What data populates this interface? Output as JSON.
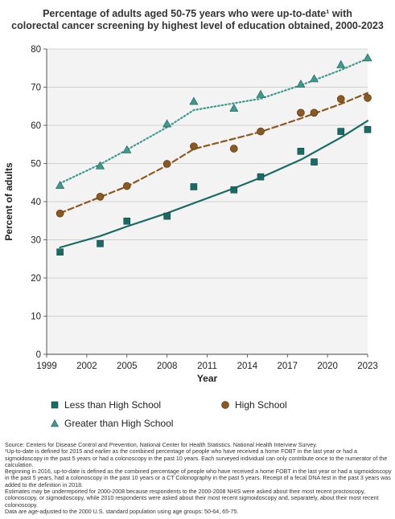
{
  "chart_data": {
    "type": "scatter",
    "title_lines": [
      "Percentage of adults aged 50-75 years who were up-to-date¹ with",
      "colorectal cancer screening by highest level of education obtained, 2000-2023"
    ],
    "xlabel": "Year",
    "ylabel": "Percent of adults",
    "xlim": [
      1999,
      2023
    ],
    "ylim": [
      0,
      80
    ],
    "x_ticks": [
      1999,
      2002,
      2005,
      2008,
      2011,
      2014,
      2017,
      2020,
      2023
    ],
    "y_ticks": [
      0,
      10,
      20,
      30,
      40,
      50,
      60,
      70,
      80
    ],
    "grid": "horizontal",
    "legend_position": "bottom",
    "series": [
      {
        "name": "Less than High School",
        "marker": "square",
        "color": "#1a6b63",
        "line_style": "solid",
        "x": [
          2000,
          2003,
          2005,
          2008,
          2010,
          2013,
          2015,
          2018,
          2019,
          2021,
          2023
        ],
        "y": [
          26.8,
          29.0,
          34.9,
          36.2,
          43.9,
          43.1,
          46.5,
          53.2,
          50.4,
          58.4,
          58.9
        ],
        "trend_x": [
          2000,
          2003,
          2005,
          2008,
          2010,
          2013,
          2015,
          2018,
          2021,
          2023
        ],
        "trend_y": [
          28.0,
          31.0,
          33.5,
          37.0,
          39.6,
          43.5,
          46.3,
          51.0,
          56.8,
          61.2
        ]
      },
      {
        "name": "High School",
        "marker": "circle",
        "color": "#8b5a20",
        "line_style": "dashed",
        "x": [
          2000,
          2003,
          2005,
          2008,
          2010,
          2013,
          2015,
          2018,
          2019,
          2021,
          2023
        ],
        "y": [
          36.9,
          41.3,
          44.1,
          49.9,
          54.5,
          53.9,
          58.4,
          63.3,
          63.3,
          66.9,
          67.2
        ],
        "trend_x": [
          2000,
          2003,
          2005,
          2008,
          2010,
          2015,
          2018,
          2021,
          2023
        ],
        "trend_y": [
          37.0,
          41.2,
          44.0,
          49.5,
          53.8,
          58.3,
          61.8,
          65.6,
          68.5
        ]
      },
      {
        "name": "Greater than High School",
        "marker": "triangle",
        "color": "#3d9a8c",
        "line_style": "dotted",
        "x": [
          2000,
          2003,
          2005,
          2008,
          2010,
          2013,
          2015,
          2018,
          2019,
          2021,
          2023
        ],
        "y": [
          44.2,
          49.3,
          53.5,
          60.3,
          66.2,
          64.4,
          68.0,
          70.7,
          72.1,
          75.8,
          77.6
        ],
        "trend_x": [
          2000,
          2003,
          2005,
          2008,
          2010,
          2015,
          2018,
          2021,
          2023
        ],
        "trend_y": [
          44.8,
          49.8,
          53.6,
          59.5,
          64.0,
          67.0,
          70.5,
          74.5,
          77.5
        ]
      }
    ]
  },
  "footnotes": [
    "Source: Centers for Disease Control and Prevention, National Center for Health Statistics. National Health Interview Survey.",
    "¹Up-to-date is defined for 2015 and earlier as the combined percentage of people who have received a home FOBT in the last year or had a sigmoidoscopy in the past 5 years or had a colonoscopy in the past 10 years. Each surveyed individual can only contribute once to the numerator of the calculation.",
    "Beginning in 2016, up-to-date is defined as the combined percentage of people who have received a home FOBT in the last year or had a sigmoidoscopy in the past 5 years, had a colonoscopy in the past 10 years or a CT Colonography in the past 5 years. Receipt of a fecal DNA test in the past 3 years was added to the definition in 2018.",
    "Estimates may be underreported for 2000-2008 because respondents to the 2000-2008 NHIS were asked about their most recent proctoscopy, colonoscopy, or sigmoidoscopy, while 2010 respondents were asked about their most recent sigmoidoscopy and, separately, about their most recent colonoscopy.",
    "Data are age-adjusted to the 2000 U.S. standard population using age groups: 50-64, 65-75."
  ]
}
